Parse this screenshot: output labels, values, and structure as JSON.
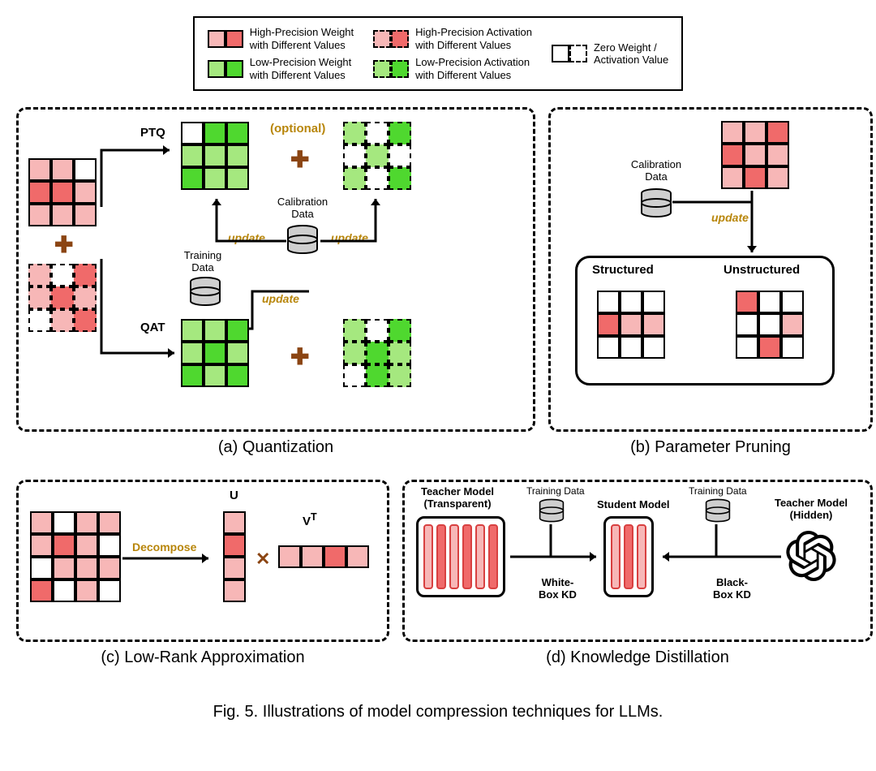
{
  "colors": {
    "red_light": "#f7b7b7",
    "red_dark": "#f06a6a",
    "green_light": "#a5e87f",
    "green_dark": "#4fd82f",
    "white": "#ffffff",
    "orange_text": "#b8860b",
    "plus_color": "#8b4513",
    "db_gray": "#cfcfcf"
  },
  "legend": {
    "items": [
      {
        "label": "High-Precision Weight\nwith Different Values",
        "swatch": [
          "red_light",
          "red_dark"
        ],
        "dashed": false
      },
      {
        "label": "Low-Precision Weight\nwith Different Values",
        "swatch": [
          "green_light",
          "green_dark"
        ],
        "dashed": false
      },
      {
        "label": "High-Precision Activation\nwith Different Values",
        "swatch": [
          "red_light",
          "red_dark"
        ],
        "dashed": true
      },
      {
        "label": "Low-Precision Activation\nwith Different Values",
        "swatch": [
          "green_light",
          "green_dark"
        ],
        "dashed": true
      },
      {
        "label": "Zero Weight  /\nActivation Value",
        "swatch": [
          "white",
          "white"
        ],
        "dashed_half": true
      }
    ]
  },
  "panels": {
    "a": {
      "caption": "(a) Quantization",
      "ptq_label": "PTQ",
      "qat_label": "QAT",
      "optional_label": "(optional)",
      "calib_label": "Calibration\nData",
      "train_label": "Training\nData",
      "update_label": "update",
      "input_weight": [
        "red_light",
        "red_light",
        "white",
        "red_dark",
        "red_dark",
        "red_light",
        "red_light",
        "red_light",
        "red_light"
      ],
      "input_act": [
        "red_light",
        "white",
        "red_dark",
        "red_light",
        "red_dark",
        "red_light",
        "white",
        "red_light",
        "red_dark"
      ],
      "ptq_weight": [
        "white",
        "green_dark",
        "green_dark",
        "green_light",
        "green_light",
        "green_light",
        "green_dark",
        "green_light",
        "green_light"
      ],
      "ptq_act": [
        "green_light",
        "white",
        "green_dark",
        "white",
        "green_light",
        "white",
        "green_light",
        "white",
        "green_dark"
      ],
      "qat_weight": [
        "green_light",
        "green_light",
        "green_dark",
        "green_light",
        "green_dark",
        "green_light",
        "green_dark",
        "green_light",
        "green_dark"
      ],
      "qat_act": [
        "green_light",
        "white",
        "green_dark",
        "green_light",
        "green_dark",
        "green_light",
        "white",
        "green_dark",
        "green_light"
      ]
    },
    "b": {
      "caption": "(b) Parameter Pruning",
      "calib_label": "Calibration\nData",
      "update_label": "update",
      "structured_label": "Structured",
      "unstructured_label": "Unstructured",
      "input": [
        "red_light",
        "red_light",
        "red_dark",
        "red_dark",
        "red_light",
        "red_light",
        "red_light",
        "red_dark",
        "red_light"
      ],
      "structured": [
        "white",
        "white",
        "white",
        "red_dark",
        "red_light",
        "red_light",
        "white",
        "white",
        "white"
      ],
      "unstructured": [
        "red_dark",
        "white",
        "white",
        "white",
        "white",
        "red_light",
        "white",
        "red_dark",
        "white"
      ]
    },
    "c": {
      "caption": "(c) Low-Rank Approximation",
      "decompose_label": "Decompose",
      "u_label": "U",
      "vt_label": "V",
      "vt_sup": "T",
      "input4x4": [
        "red_light",
        "white",
        "red_light",
        "red_light",
        "red_light",
        "red_dark",
        "red_light",
        "white",
        "white",
        "red_light",
        "red_light",
        "red_light",
        "red_dark",
        "white",
        "red_light",
        "white"
      ],
      "u_col": [
        "red_light",
        "red_dark",
        "red_light",
        "red_light"
      ],
      "vt_row": [
        "red_light",
        "red_light",
        "red_dark",
        "red_light"
      ]
    },
    "d": {
      "caption": "(d) Knowledge Distillation",
      "teacher_t_label": "Teacher Model\n(Transparent)",
      "teacher_h_label": "Teacher Model\n(Hidden)",
      "student_label": "Student Model",
      "train_label": "Training Data",
      "whitebox_label": "White-\nBox KD",
      "blackbox_label": "Black-\nBox KD",
      "teacher_bars": [
        "red_light",
        "red_dark",
        "red_light",
        "red_dark",
        "red_light",
        "red_dark"
      ],
      "student_bars": [
        "red_light",
        "red_dark",
        "red_light"
      ]
    }
  },
  "figure_caption": "Fig. 5.  Illustrations of model compression techniques for LLMs."
}
